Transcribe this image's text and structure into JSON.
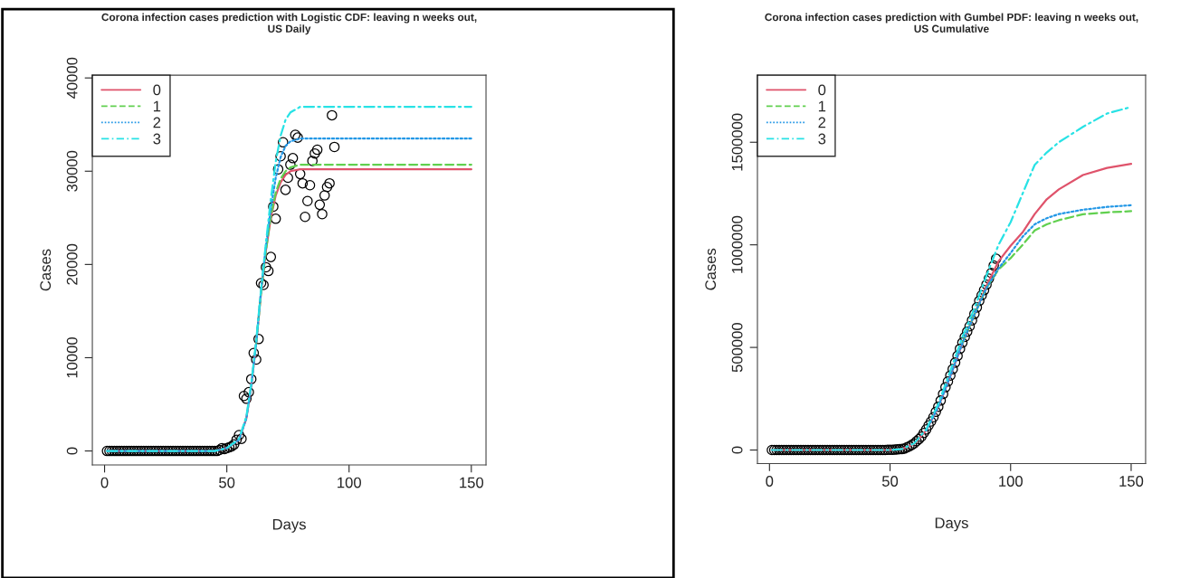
{
  "chart_data": [
    {
      "type": "line",
      "title": "Corona infection cases prediction with Logistic CDF: leaving n weeks out,\nUS Daily",
      "xlabel": "Days",
      "ylabel": "Cases",
      "xlim": [
        -5,
        156
      ],
      "ylim": [
        -1500,
        40300
      ],
      "xticks": [
        0,
        50,
        100,
        150
      ],
      "yticks": [
        0,
        10000,
        20000,
        30000,
        40000
      ],
      "legend": "top left",
      "series": [
        {
          "type": "scatter",
          "marker": "circle",
          "color": "#000000",
          "x": [
            1,
            2,
            3,
            4,
            5,
            6,
            7,
            8,
            9,
            10,
            11,
            12,
            13,
            14,
            15,
            16,
            17,
            18,
            19,
            20,
            21,
            22,
            23,
            24,
            25,
            26,
            27,
            28,
            29,
            30,
            31,
            32,
            33,
            34,
            35,
            36,
            37,
            38,
            39,
            40,
            41,
            42,
            43,
            44,
            45,
            46,
            47,
            48,
            49,
            50,
            51,
            52,
            53,
            54,
            55,
            56,
            57,
            58,
            59,
            60,
            61,
            62,
            63,
            64,
            65,
            66,
            67,
            68,
            69,
            70,
            71,
            72,
            73,
            74,
            75,
            76,
            77,
            78,
            79,
            80,
            81,
            82,
            83,
            84,
            85,
            86,
            87,
            88,
            89,
            90,
            91,
            92,
            93,
            94
          ],
          "values": [
            0,
            0,
            0,
            0,
            0,
            0,
            0,
            0,
            0,
            0,
            0,
            0,
            0,
            0,
            0,
            0,
            0,
            0,
            0,
            0,
            0,
            0,
            0,
            0,
            0,
            0,
            0,
            0,
            0,
            0,
            0,
            0,
            0,
            0,
            0,
            0,
            0,
            0,
            0,
            0,
            0,
            0,
            0,
            0,
            0,
            0,
            100,
            300,
            200,
            300,
            400,
            500,
            700,
            1200,
            1700,
            1300,
            5900,
            5600,
            6300,
            7700,
            10500,
            9800,
            12000,
            18000,
            17800,
            19700,
            19300,
            20800,
            26200,
            24900,
            30200,
            31600,
            33100,
            28000,
            29300,
            30700,
            31400,
            33900,
            33600,
            29700,
            28700,
            25100,
            26800,
            28500,
            31100,
            31900,
            32300,
            26400,
            25400,
            27400,
            28300,
            28700,
            36000,
            32600
          ]
        },
        {
          "name": "0",
          "color": "#df536b",
          "line_style": "solid",
          "x": [
            1,
            45,
            50,
            55,
            58,
            60,
            62,
            64,
            66,
            68,
            70,
            72,
            74,
            76,
            80,
            90,
            150
          ],
          "values": [
            0,
            0,
            300,
            1200,
            3500,
            7000,
            11500,
            17000,
            21500,
            25000,
            27400,
            28800,
            29600,
            30000,
            30200,
            30200,
            30200
          ]
        },
        {
          "name": "1",
          "color": "#61d04f",
          "line_style": "dashed",
          "x": [
            62,
            64,
            66,
            68,
            70,
            72,
            74,
            76,
            80,
            90,
            150
          ],
          "values": [
            11500,
            17000,
            21500,
            25200,
            27700,
            29200,
            30000,
            30400,
            30700,
            30700,
            30700
          ]
        },
        {
          "name": "2",
          "color": "#2297e6",
          "line_style": "dotted",
          "x": [
            1,
            45,
            50,
            55,
            58,
            60,
            62,
            64,
            66,
            68,
            70,
            72,
            74,
            76,
            80,
            90,
            150
          ],
          "values": [
            0,
            0,
            300,
            1200,
            3500,
            7000,
            11500,
            17200,
            22000,
            26000,
            29300,
            31500,
            32700,
            33200,
            33500,
            33500,
            33500
          ]
        },
        {
          "name": "3",
          "color": "#28e2e5",
          "line_style": "dashdot",
          "x": [
            1,
            45,
            50,
            55,
            58,
            60,
            62,
            64,
            66,
            68,
            70,
            72,
            74,
            76,
            80,
            90,
            150
          ],
          "values": [
            0,
            0,
            300,
            1300,
            3700,
            7200,
            11800,
            17300,
            22300,
            27000,
            31000,
            33800,
            35500,
            36300,
            36900,
            36900,
            36900
          ]
        }
      ]
    },
    {
      "type": "line",
      "title": "Corona infection cases prediction with Gumbel PDF: leaving n weeks out,\nUS Cumulative",
      "xlabel": "Days",
      "ylabel": "Cases",
      "xlim": [
        -5,
        156
      ],
      "ylim": [
        -66000,
        1827000
      ],
      "xticks": [
        0,
        50,
        100,
        150
      ],
      "yticks": [
        0,
        500000,
        1000000,
        1500000
      ],
      "legend": "top left",
      "series": [
        {
          "type": "scatter",
          "marker": "circle",
          "color": "#000000",
          "x": [
            1,
            2,
            3,
            4,
            5,
            6,
            7,
            8,
            9,
            10,
            11,
            12,
            13,
            14,
            15,
            16,
            17,
            18,
            19,
            20,
            21,
            22,
            23,
            24,
            25,
            26,
            27,
            28,
            29,
            30,
            31,
            32,
            33,
            34,
            35,
            36,
            37,
            38,
            39,
            40,
            41,
            42,
            43,
            44,
            45,
            46,
            47,
            48,
            49,
            50,
            51,
            52,
            53,
            54,
            55,
            56,
            57,
            58,
            59,
            60,
            61,
            62,
            63,
            64,
            65,
            66,
            67,
            68,
            69,
            70,
            71,
            72,
            73,
            74,
            75,
            76,
            77,
            78,
            79,
            80,
            81,
            82,
            83,
            84,
            85,
            86,
            87,
            88,
            89,
            90,
            91,
            92,
            93,
            94
          ],
          "values": [
            0,
            0,
            0,
            0,
            0,
            0,
            0,
            0,
            0,
            0,
            0,
            0,
            0,
            0,
            0,
            0,
            0,
            0,
            0,
            0,
            0,
            0,
            0,
            0,
            0,
            0,
            0,
            0,
            0,
            0,
            0,
            0,
            0,
            0,
            0,
            0,
            0,
            0,
            0,
            0,
            0,
            0,
            0,
            0,
            0,
            0,
            0,
            0,
            1000,
            1000,
            1000,
            2000,
            3000,
            4000,
            5000,
            7000,
            13000,
            18000,
            25000,
            32000,
            43000,
            53000,
            65000,
            83000,
            100000,
            120000,
            139000,
            160000,
            186000,
            211000,
            241000,
            273000,
            306000,
            334000,
            363000,
            394000,
            426000,
            459000,
            493000,
            523000,
            551000,
            577000,
            603000,
            632000,
            663000,
            695000,
            727000,
            754000,
            779000,
            806000,
            835000,
            863000,
            899000,
            932000
          ]
        },
        {
          "name": "0",
          "color": "#df536b",
          "line_style": "solid",
          "x": [
            1,
            50,
            55,
            60,
            65,
            70,
            75,
            80,
            85,
            90,
            95,
            100,
            105,
            110,
            115,
            120,
            130,
            140,
            150
          ],
          "values": [
            0,
            0,
            5000,
            30000,
            95000,
            210000,
            360000,
            520000,
            660000,
            800000,
            920000,
            995000,
            1061000,
            1150000,
            1222000,
            1270000,
            1340000,
            1375000,
            1395000
          ]
        },
        {
          "name": "1",
          "color": "#61d04f",
          "line_style": "dashed",
          "x": [
            80,
            85,
            90,
            95,
            100,
            105,
            110,
            115,
            120,
            130,
            140,
            150
          ],
          "values": [
            520000,
            660000,
            790000,
            880000,
            935000,
            1000000,
            1070000,
            1100000,
            1120000,
            1149000,
            1158000,
            1164000
          ]
        },
        {
          "name": "2",
          "color": "#2297e6",
          "line_style": "dotted",
          "x": [
            65,
            70,
            75,
            80,
            85,
            90,
            95,
            100,
            105,
            110,
            115,
            120,
            130,
            140,
            150
          ],
          "values": [
            95000,
            210000,
            360000,
            520000,
            660000,
            790000,
            885000,
            960000,
            1040000,
            1100000,
            1130000,
            1150000,
            1171000,
            1185000,
            1193000
          ]
        },
        {
          "name": "3",
          "color": "#28e2e5",
          "line_style": "dashdot",
          "x": [
            1,
            50,
            55,
            60,
            65,
            70,
            75,
            80,
            85,
            90,
            95,
            100,
            105,
            110,
            115,
            120,
            130,
            140,
            150
          ],
          "values": [
            0,
            0,
            5000,
            32000,
            100000,
            225000,
            385000,
            550000,
            690000,
            850000,
            1000000,
            1110000,
            1250000,
            1390000,
            1450000,
            1500000,
            1575000,
            1640000,
            1672000
          ]
        }
      ]
    }
  ]
}
